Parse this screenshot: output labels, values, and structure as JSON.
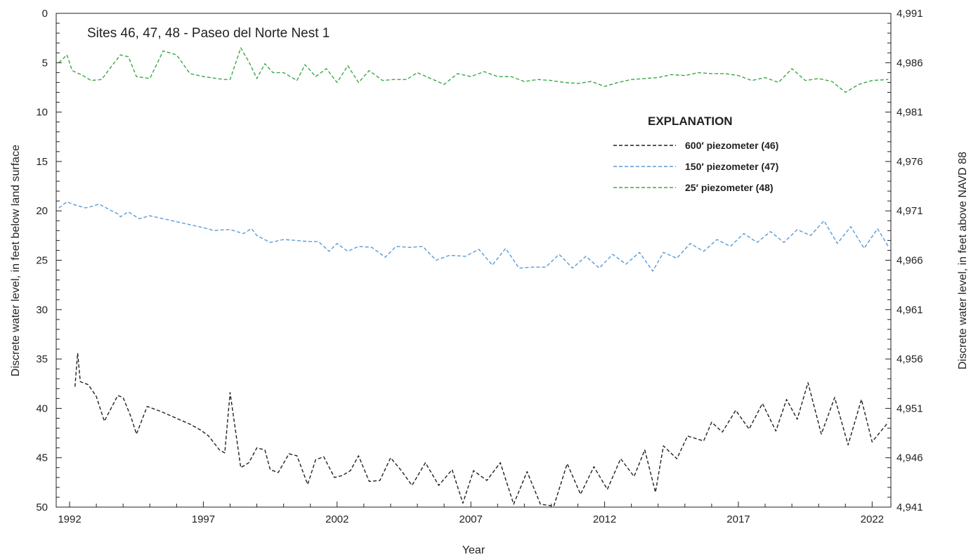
{
  "chart_data": {
    "type": "line",
    "title": "Sites 46, 47, 48 - Paseo del Norte Nest 1",
    "xlabel": "Year",
    "ylabel": "Discrete water level, in feet below land surface",
    "ylabel_right": "Discrete water level, in feet above NAVD 88",
    "legend_title": "EXPLANATION",
    "legend_position": "right-middle",
    "xlim": [
      1991.5,
      2022.7
    ],
    "ylim": [
      0,
      50
    ],
    "y_inverted": true,
    "ylim_right": [
      4941,
      4991
    ],
    "x_ticks": [
      "1992",
      "1997",
      "2002",
      "2007",
      "2012",
      "2017",
      "2022"
    ],
    "y_ticks": [
      "0",
      "5",
      "10",
      "15",
      "20",
      "25",
      "30",
      "35",
      "40",
      "45",
      "50"
    ],
    "y_ticks_right": [
      "4,991",
      "4,986",
      "4,981",
      "4,976",
      "4,971",
      "4,966",
      "4,961",
      "4,956",
      "4,951",
      "4,946",
      "4,941"
    ],
    "grid": false,
    "series": [
      {
        "name": "600′ piezometer (46)",
        "color": "#231f20",
        "style": "dashed",
        "x": [
          1992.2,
          1992.3,
          1992.4,
          1992.7,
          1993.0,
          1993.3,
          1993.8,
          1994.0,
          1994.3,
          1994.5,
          1994.9,
          1995.4,
          1996.5,
          1996.9,
          1997.2,
          1997.6,
          1997.8,
          1998.0,
          1998.4,
          1998.7,
          1999.0,
          1999.3,
          1999.5,
          1999.8,
          2000.2,
          2000.5,
          2000.9,
          2001.2,
          2001.5,
          2001.9,
          2002.2,
          2002.5,
          2002.8,
          2003.2,
          2003.6,
          2004.0,
          2004.4,
          2004.8,
          2005.3,
          2005.8,
          2006.3,
          2006.7,
          2007.1,
          2007.6,
          2008.1,
          2008.6,
          2009.1,
          2009.6,
          2010.1,
          2010.6,
          2011.1,
          2011.6,
          2012.1,
          2012.6,
          2013.1,
          2013.5,
          2013.9,
          2014.2,
          2014.7,
          2015.1,
          2015.7,
          2016.0,
          2016.4,
          2016.9,
          2017.4,
          2017.9,
          2018.4,
          2018.8,
          2019.2,
          2019.6,
          2020.1,
          2020.6,
          2021.1,
          2021.6,
          2022.0,
          2022.6
        ],
        "values": [
          37.8,
          34.4,
          37.3,
          37.6,
          38.8,
          41.3,
          38.7,
          38.9,
          40.9,
          42.6,
          39.8,
          40.3,
          41.6,
          42.2,
          42.8,
          44.2,
          44.5,
          38.4,
          46.0,
          45.5,
          44.0,
          44.2,
          46.2,
          46.5,
          44.6,
          44.8,
          47.7,
          45.2,
          44.9,
          47.0,
          46.8,
          46.3,
          44.8,
          47.4,
          47.3,
          45.0,
          46.3,
          47.8,
          45.5,
          47.8,
          46.2,
          49.6,
          46.3,
          47.3,
          45.5,
          49.7,
          46.4,
          49.7,
          49.9,
          45.6,
          48.7,
          45.9,
          48.2,
          45.1,
          46.9,
          44.2,
          48.5,
          43.8,
          45.1,
          42.8,
          43.3,
          41.4,
          42.4,
          40.2,
          42.1,
          39.5,
          42.3,
          39.1,
          41.1,
          37.4,
          42.6,
          38.9,
          43.7,
          39.1,
          43.4,
          41.4
        ]
      },
      {
        "name": "150′ piezometer (47)",
        "color": "#5b9bd5",
        "style": "dashed",
        "x": [
          1991.6,
          1991.9,
          1992.2,
          1992.6,
          1992.9,
          1993.1,
          1993.5,
          1993.8,
          1993.9,
          1994.2,
          1994.6,
          1995.0,
          1995.5,
          1996.0,
          1996.5,
          1997.0,
          1997.4,
          1997.8,
          1998.0,
          1998.5,
          1998.8,
          1999.0,
          1999.5,
          2000.0,
          2000.5,
          2000.9,
          2001.3,
          2001.7,
          2002.0,
          2002.4,
          2002.8,
          2003.3,
          2003.8,
          2004.2,
          2004.7,
          2005.2,
          2005.7,
          2006.2,
          2006.8,
          2007.3,
          2007.8,
          2008.3,
          2008.8,
          2009.3,
          2009.8,
          2010.3,
          2010.8,
          2011.3,
          2011.8,
          2012.3,
          2012.8,
          2013.3,
          2013.8,
          2014.2,
          2014.7,
          2015.2,
          2015.7,
          2016.2,
          2016.7,
          2017.2,
          2017.7,
          2018.2,
          2018.7,
          2019.2,
          2019.7,
          2020.2,
          2020.7,
          2021.2,
          2021.7,
          2022.2,
          2022.6
        ],
        "values": [
          19.7,
          19.1,
          19.4,
          19.7,
          19.5,
          19.3,
          19.9,
          20.3,
          20.6,
          20.1,
          20.8,
          20.5,
          20.8,
          21.1,
          21.4,
          21.7,
          22.0,
          21.9,
          21.9,
          22.3,
          21.8,
          22.5,
          23.2,
          22.9,
          23.0,
          23.1,
          23.1,
          24.1,
          23.3,
          24.1,
          23.6,
          23.7,
          24.7,
          23.6,
          23.7,
          23.6,
          25.0,
          24.5,
          24.6,
          23.9,
          25.5,
          23.8,
          25.8,
          25.7,
          25.7,
          24.4,
          25.8,
          24.6,
          25.8,
          24.4,
          25.4,
          24.2,
          26.1,
          24.2,
          24.8,
          23.3,
          24.1,
          22.9,
          23.6,
          22.3,
          23.2,
          22.1,
          23.2,
          21.9,
          22.5,
          21.0,
          23.3,
          21.6,
          23.8,
          21.8,
          23.6
        ]
      },
      {
        "name": "25′ piezometer (48)",
        "color": "#3aa845",
        "style": "dashed",
        "x": [
          1991.6,
          1991.9,
          1992.1,
          1992.5,
          1992.8,
          1993.2,
          1993.5,
          1993.9,
          1994.2,
          1994.5,
          1995.0,
          1995.5,
          1996.0,
          1996.5,
          1997.0,
          1997.5,
          1997.8,
          1998.0,
          1998.4,
          1998.7,
          1999.0,
          1999.3,
          1999.6,
          2000.0,
          2000.5,
          2000.8,
          2001.2,
          2001.6,
          2002.0,
          2002.4,
          2002.8,
          2003.2,
          2003.7,
          2004.1,
          2004.6,
          2005.0,
          2005.5,
          2006.0,
          2006.5,
          2007.0,
          2007.5,
          2008.0,
          2008.5,
          2009.0,
          2009.5,
          2010.0,
          2010.5,
          2011.0,
          2011.5,
          2012.0,
          2012.5,
          2013.0,
          2013.5,
          2014.0,
          2014.5,
          2015.0,
          2015.5,
          2016.0,
          2016.5,
          2017.0,
          2017.5,
          2018.0,
          2018.5,
          2019.0,
          2019.5,
          2020.0,
          2020.5,
          2021.0,
          2021.5,
          2022.0,
          2022.6
        ],
        "values": [
          5.0,
          4.2,
          5.8,
          6.3,
          6.8,
          6.7,
          5.6,
          4.2,
          4.4,
          6.4,
          6.6,
          3.8,
          4.2,
          6.1,
          6.4,
          6.6,
          6.7,
          6.7,
          3.5,
          4.9,
          6.6,
          5.1,
          6.0,
          6.0,
          6.8,
          5.2,
          6.4,
          5.6,
          7.0,
          5.3,
          7.0,
          5.8,
          6.8,
          6.7,
          6.7,
          6.0,
          6.6,
          7.2,
          6.1,
          6.4,
          5.9,
          6.4,
          6.4,
          6.9,
          6.7,
          6.8,
          7.0,
          7.1,
          6.9,
          7.4,
          7.0,
          6.7,
          6.6,
          6.5,
          6.2,
          6.3,
          6.0,
          6.1,
          6.1,
          6.3,
          6.8,
          6.5,
          7.0,
          5.6,
          6.8,
          6.6,
          6.9,
          8.0,
          7.2,
          6.8,
          6.7
        ]
      }
    ]
  }
}
